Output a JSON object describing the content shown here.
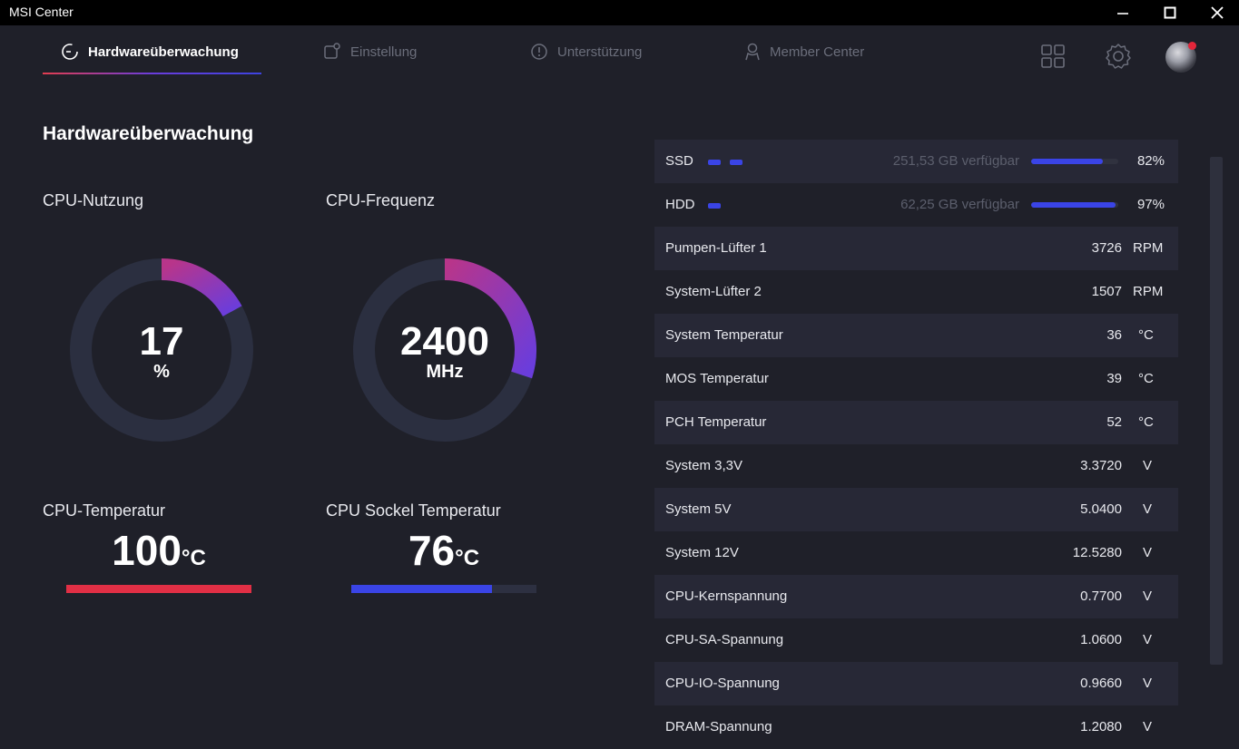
{
  "window": {
    "title": "MSI Center"
  },
  "nav": {
    "tabs": [
      {
        "label": "Hardwareüberwachung",
        "active": true
      },
      {
        "label": "Einstellung",
        "active": false
      },
      {
        "label": "Unterstützung",
        "active": false
      },
      {
        "label": "Member Center",
        "active": false
      }
    ],
    "icons": [
      "grid-icon",
      "gear-icon",
      "avatar"
    ]
  },
  "page": {
    "title": "Hardwareüberwachung"
  },
  "cpu_usage": {
    "label": "CPU-Nutzung",
    "value": "17",
    "unit": "%",
    "fraction": 0.17
  },
  "cpu_freq": {
    "label": "CPU-Frequenz",
    "value": "2400",
    "unit": "MHz",
    "fraction": 0.3
  },
  "cpu_temp": {
    "label": "CPU-Temperatur",
    "value": "100",
    "unit": "°C",
    "fraction": 1.0,
    "color": "#e12f45"
  },
  "socket_temp": {
    "label": "CPU Sockel Temperatur",
    "value": "76",
    "unit": "°C",
    "fraction": 0.76,
    "color": "#3a44e6"
  },
  "disks": [
    {
      "label": "SSD",
      "chips": 2,
      "free": "251,53 GB verfügbar",
      "percent": "82%",
      "fraction": 0.82
    },
    {
      "label": "HDD",
      "chips": 1,
      "free": "62,25 GB verfügbar",
      "percent": "97%",
      "fraction": 0.97
    }
  ],
  "sensors": [
    {
      "label": "Pumpen-Lüfter 1",
      "value": "3726",
      "unit": "RPM"
    },
    {
      "label": "System-Lüfter 2",
      "value": "1507",
      "unit": "RPM"
    },
    {
      "label": "System Temperatur",
      "value": "36",
      "unit": "°C"
    },
    {
      "label": "MOS Temperatur",
      "value": "39",
      "unit": "°C"
    },
    {
      "label": "PCH Temperatur",
      "value": "52",
      "unit": "°C"
    },
    {
      "label": "System 3,3V",
      "value": "3.3720",
      "unit": "V"
    },
    {
      "label": "System 5V",
      "value": "5.0400",
      "unit": "V"
    },
    {
      "label": "System 12V",
      "value": "12.5280",
      "unit": "V"
    },
    {
      "label": "CPU-Kernspannung",
      "value": "0.7700",
      "unit": "V"
    },
    {
      "label": "CPU-SA-Spannung",
      "value": "1.0600",
      "unit": "V"
    },
    {
      "label": "CPU-IO-Spannung",
      "value": "0.9660",
      "unit": "V"
    },
    {
      "label": "DRAM-Spannung",
      "value": "1.2080",
      "unit": "V"
    }
  ],
  "colors": {
    "background": "#1f2029",
    "row_alt": "#272836",
    "accent_red": "#e12f45",
    "accent_blue": "#3a44e6",
    "gauge_track": "#2b2f40",
    "gauge_start": "#b8358a",
    "gauge_end": "#6a3ddc"
  }
}
